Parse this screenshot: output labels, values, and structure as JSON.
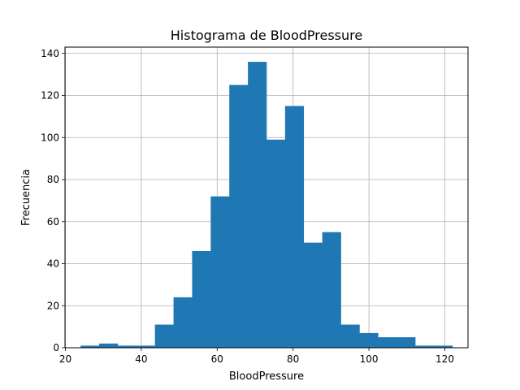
{
  "chart_data": {
    "type": "bar",
    "title": "Histograma de BloodPressure",
    "xlabel": "BloodPressure",
    "ylabel": "Frecuencia",
    "xlim": [
      19.9,
      126.1
    ],
    "ylim": [
      0,
      143
    ],
    "xticks": [
      20,
      40,
      60,
      80,
      100,
      120
    ],
    "yticks": [
      0,
      20,
      40,
      60,
      80,
      100,
      120,
      140
    ],
    "grid": true,
    "bar_color": "#1f77b4",
    "bins": [
      {
        "x0": 24.0,
        "x1": 28.9,
        "count": 1
      },
      {
        "x0": 28.9,
        "x1": 33.8,
        "count": 2
      },
      {
        "x0": 33.8,
        "x1": 38.7,
        "count": 1
      },
      {
        "x0": 38.7,
        "x1": 43.6,
        "count": 1
      },
      {
        "x0": 43.6,
        "x1": 48.5,
        "count": 11
      },
      {
        "x0": 48.5,
        "x1": 53.4,
        "count": 24
      },
      {
        "x0": 53.4,
        "x1": 58.3,
        "count": 46
      },
      {
        "x0": 58.3,
        "x1": 63.2,
        "count": 72
      },
      {
        "x0": 63.2,
        "x1": 68.1,
        "count": 125
      },
      {
        "x0": 68.1,
        "x1": 73.0,
        "count": 136
      },
      {
        "x0": 73.0,
        "x1": 77.9,
        "count": 99
      },
      {
        "x0": 77.9,
        "x1": 82.8,
        "count": 115
      },
      {
        "x0": 82.8,
        "x1": 87.7,
        "count": 50
      },
      {
        "x0": 87.7,
        "x1": 92.6,
        "count": 55
      },
      {
        "x0": 92.6,
        "x1": 97.5,
        "count": 11
      },
      {
        "x0": 97.5,
        "x1": 102.4,
        "count": 7
      },
      {
        "x0": 102.4,
        "x1": 107.3,
        "count": 5
      },
      {
        "x0": 107.3,
        "x1": 112.2,
        "count": 5
      },
      {
        "x0": 112.2,
        "x1": 117.1,
        "count": 1
      },
      {
        "x0": 117.1,
        "x1": 122.0,
        "count": 1
      }
    ]
  }
}
